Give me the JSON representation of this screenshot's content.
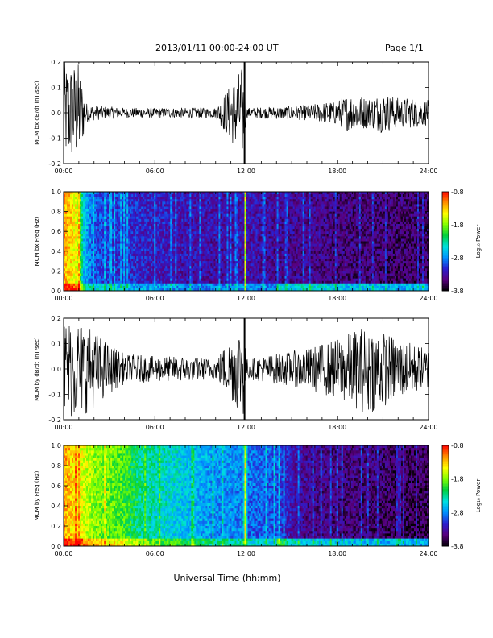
{
  "header": {
    "date_range": "2013/01/11  00:00-24:00 UT",
    "page": "Page 1/1"
  },
  "xaxis": {
    "label": "Universal Time (hh:mm)",
    "ticks": [
      "00:00",
      "06:00",
      "12:00",
      "18:00",
      "24:00"
    ],
    "range_hours": [
      0,
      24
    ]
  },
  "colorbar": {
    "label": "Log₁₀ Power",
    "ticks": [
      "-0.8",
      "-1.8",
      "-2.8",
      "-3.8"
    ],
    "range": [
      -3.8,
      -0.8
    ],
    "colors": [
      "#000000",
      "#5a007f",
      "#2a1fd0",
      "#0090ff",
      "#00e0e0",
      "#00d040",
      "#80ff00",
      "#ffff00",
      "#ff9000",
      "#ff0000"
    ]
  },
  "chart_data": [
    {
      "type": "line",
      "title": "",
      "ylabel": "MCM bx dB/dt (nT/sec)",
      "xlabel": "",
      "xlim": [
        0,
        24
      ],
      "ylim": [
        -0.2,
        0.2
      ],
      "yticks": [
        "0.2",
        "0.1",
        "0.0",
        "-0.1",
        "-0.2"
      ],
      "series": [
        {
          "x": [
            0,
            0.5,
            1,
            1.5,
            2,
            3,
            4,
            6,
            8,
            10,
            11.9,
            12,
            14,
            16,
            18,
            19,
            20,
            21,
            22,
            23,
            24
          ],
          "envelope": [
            0.2,
            0.2,
            0.2,
            0.04,
            0.03,
            0.025,
            0.02,
            0.02,
            0.02,
            0.02,
            0.2,
            0.02,
            0.025,
            0.03,
            0.05,
            0.08,
            0.06,
            0.08,
            0.06,
            0.06,
            0.05
          ]
        }
      ]
    },
    {
      "type": "heatmap",
      "title": "",
      "ylabel": "MCM bx Freq (Hz)",
      "xlabel": "",
      "xlim": [
        0,
        24
      ],
      "ylim": [
        0,
        1.0
      ],
      "yticks": [
        "1.0",
        "0.8",
        "0.6",
        "0.4",
        "0.2",
        "0.0"
      ],
      "zlim": [
        -3.8,
        -0.8
      ],
      "profile_hours": [
        0,
        1,
        1.3,
        2,
        3,
        5,
        8,
        11,
        12,
        14,
        16,
        18,
        20,
        22,
        24
      ],
      "profile_power": [
        -1.2,
        -1.6,
        -2.6,
        -3.0,
        -3.1,
        -3.2,
        -3.3,
        -3.35,
        -3.3,
        -3.4,
        -3.4,
        -3.5,
        -3.5,
        -3.55,
        -3.55
      ]
    },
    {
      "type": "line",
      "title": "",
      "ylabel": "MCM by dB/dt (nT/sec)",
      "xlabel": "",
      "xlim": [
        0,
        24
      ],
      "ylim": [
        -0.2,
        0.2
      ],
      "yticks": [
        "0.2",
        "0.1",
        "0.0",
        "-0.1",
        "-0.2"
      ],
      "series": [
        {
          "x": [
            0,
            1,
            2,
            3,
            4,
            6,
            8,
            10,
            11.9,
            12,
            14,
            16,
            18,
            19,
            20,
            21,
            22,
            23,
            24
          ],
          "envelope": [
            0.2,
            0.2,
            0.15,
            0.1,
            0.06,
            0.05,
            0.05,
            0.04,
            0.2,
            0.04,
            0.06,
            0.08,
            0.12,
            0.15,
            0.18,
            0.15,
            0.12,
            0.1,
            0.08
          ]
        }
      ]
    },
    {
      "type": "heatmap",
      "title": "",
      "ylabel": "MCM by Freq (Hz)",
      "xlabel": "",
      "xlim": [
        0,
        24
      ],
      "ylim": [
        0,
        1.0
      ],
      "yticks": [
        "1.0",
        "0.8",
        "0.6",
        "0.4",
        "0.2",
        "0.0"
      ],
      "zlim": [
        -3.8,
        -0.8
      ],
      "profile_hours": [
        0,
        1,
        2,
        3,
        4,
        5,
        6,
        8,
        10,
        11,
        12,
        14,
        15,
        16,
        18,
        20,
        22,
        24
      ],
      "profile_power": [
        -1.2,
        -1.5,
        -1.8,
        -1.9,
        -2.0,
        -2.3,
        -2.4,
        -2.6,
        -2.8,
        -2.8,
        -2.9,
        -3.0,
        -3.3,
        -3.4,
        -3.5,
        -3.5,
        -3.6,
        -3.6
      ]
    }
  ]
}
